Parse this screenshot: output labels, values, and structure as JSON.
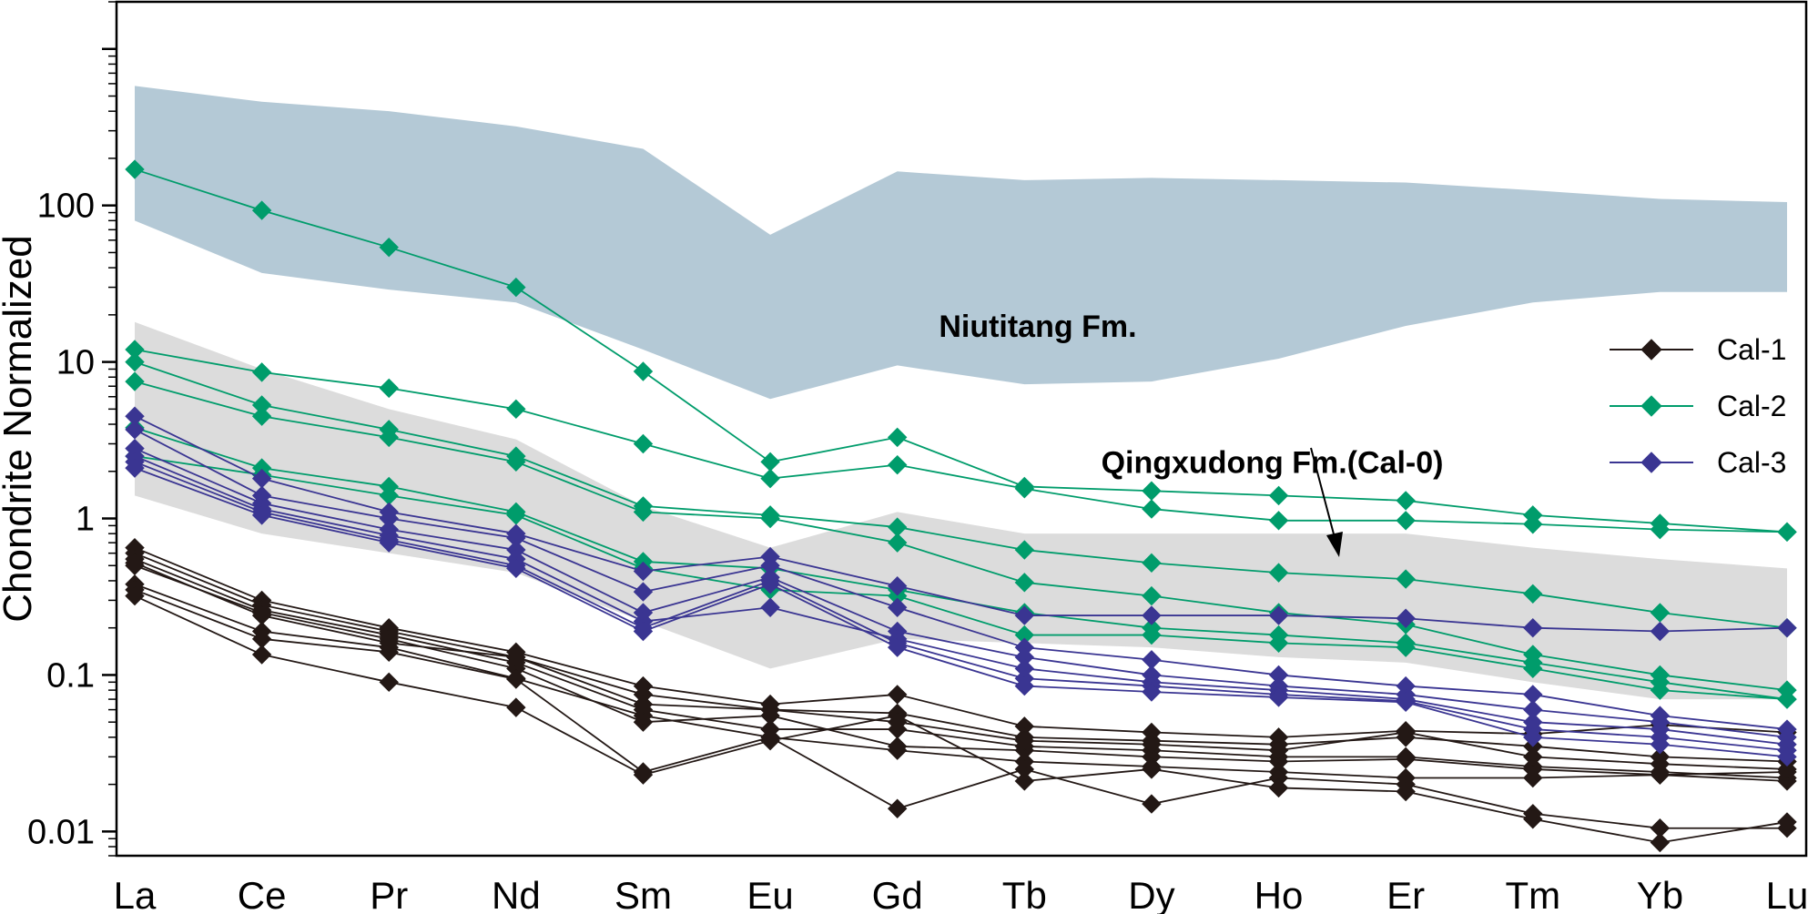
{
  "chart_data": {
    "type": "line",
    "scale": "log",
    "ylabel": "Chondrite Normalized",
    "ylim": [
      0.007,
      2000
    ],
    "y_ticks": [
      {
        "value": 0.01,
        "label": "0.01"
      },
      {
        "value": 0.1,
        "label": "0.1"
      },
      {
        "value": 1,
        "label": "1"
      },
      {
        "value": 10,
        "label": "10"
      },
      {
        "value": 100,
        "label": "100"
      }
    ],
    "categories": [
      "La",
      "Ce",
      "Pr",
      "Nd",
      "Sm",
      "Eu",
      "Gd",
      "Tb",
      "Dy",
      "Ho",
      "Er",
      "Tm",
      "Yb",
      "Lu"
    ],
    "annotations": [
      {
        "text": "Niutitang Fm.",
        "x": "Dy",
        "y": 17
      },
      {
        "text": "Qingxudong Fm.(Cal-0)",
        "x": "Ho",
        "y": 2.3
      }
    ],
    "bands": [
      {
        "name": "Niutitang Fm.",
        "color": "#b4c9d6",
        "upper": [
          580,
          460,
          400,
          320,
          230,
          65,
          165,
          145,
          150,
          145,
          140,
          125,
          110,
          105
        ],
        "lower": [
          80,
          37,
          29,
          24,
          12,
          5.8,
          9.5,
          7.2,
          7.5,
          10.5,
          17,
          24,
          28,
          28
        ]
      },
      {
        "name": "Qingxudong Fm.(Cal-0)",
        "color": "#dcdcdc",
        "upper": [
          18,
          9,
          5,
          3.2,
          1.2,
          0.65,
          1.1,
          0.8,
          0.8,
          0.8,
          0.8,
          0.65,
          0.55,
          0.48
        ],
        "lower": [
          1.4,
          0.8,
          0.6,
          0.45,
          0.22,
          0.11,
          0.17,
          0.16,
          0.15,
          0.13,
          0.12,
          0.09,
          0.07,
          0.07
        ]
      }
    ],
    "legend": {
      "position": "right",
      "entries": [
        {
          "label": "Cal-1",
          "color": "#231815"
        },
        {
          "label": "Cal-2",
          "color": "#009c6b"
        },
        {
          "label": "Cal-3",
          "color": "#3a3592"
        }
      ]
    },
    "series": [
      {
        "name": "Cal-1",
        "color": "#231815",
        "values": [
          0.65,
          0.3,
          0.2,
          0.14,
          0.085,
          0.065,
          0.075,
          0.047,
          0.043,
          0.04,
          0.044,
          0.042,
          0.048,
          0.043
        ]
      },
      {
        "name": "Cal-1",
        "color": "#231815",
        "values": [
          0.6,
          0.28,
          0.19,
          0.13,
          0.075,
          0.06,
          0.057,
          0.04,
          0.038,
          0.036,
          0.04,
          0.035,
          0.03,
          0.028
        ]
      },
      {
        "name": "Cal-1",
        "color": "#231815",
        "values": [
          0.55,
          0.26,
          0.18,
          0.12,
          0.06,
          0.045,
          0.045,
          0.035,
          0.033,
          0.03,
          0.03,
          0.026,
          0.024,
          0.022
        ]
      },
      {
        "name": "Cal-1",
        "color": "#231815",
        "values": [
          0.5,
          0.25,
          0.17,
          0.11,
          0.05,
          0.055,
          0.035,
          0.033,
          0.03,
          0.028,
          0.029,
          0.025,
          0.023,
          0.021
        ]
      },
      {
        "name": "Cal-1",
        "color": "#231815",
        "values": [
          0.38,
          0.19,
          0.15,
          0.095,
          0.055,
          0.04,
          0.033,
          0.028,
          0.026,
          0.024,
          0.022,
          0.022,
          0.023,
          0.024
        ]
      },
      {
        "name": "Cal-1",
        "color": "#231815",
        "values": [
          0.35,
          0.17,
          0.14,
          0.094,
          0.024,
          0.04,
          0.014,
          0.025,
          0.015,
          0.022,
          0.02,
          0.013,
          0.0105,
          0.0105
        ]
      },
      {
        "name": "Cal-1",
        "color": "#231815",
        "values": [
          0.32,
          0.135,
          0.09,
          0.062,
          0.023,
          0.038,
          0.055,
          0.021,
          0.025,
          0.019,
          0.018,
          0.012,
          0.0085,
          0.0115
        ]
      },
      {
        "name": "Cal-1",
        "color": "#231815",
        "values": [
          0.52,
          0.24,
          0.16,
          0.13,
          0.065,
          0.06,
          0.05,
          0.038,
          0.036,
          0.033,
          0.043,
          0.03,
          0.027,
          0.025
        ]
      },
      {
        "name": "Cal-2",
        "color": "#009c6b",
        "values": [
          170,
          93,
          54,
          30,
          8.7,
          2.3,
          3.3,
          1.6,
          1.5,
          1.4,
          1.3,
          1.05,
          0.93,
          0.82
        ]
      },
      {
        "name": "Cal-2",
        "color": "#009c6b",
        "values": [
          12,
          8.6,
          6.8,
          5.0,
          3.0,
          1.8,
          2.2,
          1.55,
          1.15,
          0.97,
          0.97,
          0.92,
          0.85,
          0.82
        ]
      },
      {
        "name": "Cal-2",
        "color": "#009c6b",
        "values": [
          10,
          5.3,
          3.7,
          2.5,
          1.2,
          1.05,
          0.88,
          0.63,
          0.52,
          0.45,
          0.41,
          0.33,
          0.25,
          0.2
        ]
      },
      {
        "name": "Cal-2",
        "color": "#009c6b",
        "values": [
          7.5,
          4.5,
          3.3,
          2.3,
          1.1,
          1.0,
          0.7,
          0.39,
          0.32,
          0.25,
          0.21,
          0.135,
          0.1,
          0.08
        ]
      },
      {
        "name": "Cal-2",
        "color": "#009c6b",
        "values": [
          3.8,
          2.1,
          1.6,
          1.1,
          0.53,
          0.48,
          0.35,
          0.25,
          0.2,
          0.18,
          0.16,
          0.12,
          0.09,
          0.07
        ]
      },
      {
        "name": "Cal-2",
        "color": "#009c6b",
        "values": [
          2.5,
          1.9,
          1.4,
          1.05,
          0.48,
          0.35,
          0.32,
          0.18,
          0.18,
          0.16,
          0.15,
          0.11,
          0.08,
          0.07
        ]
      },
      {
        "name": "Cal-3",
        "color": "#3a3592",
        "values": [
          4.5,
          1.8,
          1.1,
          0.8,
          0.46,
          0.57,
          0.37,
          0.24,
          0.24,
          0.24,
          0.23,
          0.2,
          0.19,
          0.2
        ]
      },
      {
        "name": "Cal-3",
        "color": "#3a3592",
        "values": [
          3.7,
          1.4,
          1.0,
          0.75,
          0.34,
          0.5,
          0.27,
          0.15,
          0.125,
          0.1,
          0.085,
          0.075,
          0.055,
          0.045
        ]
      },
      {
        "name": "Cal-3",
        "color": "#3a3592",
        "values": [
          2.8,
          1.25,
          0.85,
          0.63,
          0.25,
          0.42,
          0.19,
          0.13,
          0.1,
          0.085,
          0.075,
          0.06,
          0.05,
          0.04
        ]
      },
      {
        "name": "Cal-3",
        "color": "#3a3592",
        "values": [
          2.5,
          1.15,
          0.78,
          0.55,
          0.22,
          0.27,
          0.17,
          0.11,
          0.09,
          0.08,
          0.07,
          0.05,
          0.045,
          0.036
        ]
      },
      {
        "name": "Cal-3",
        "color": "#3a3592",
        "values": [
          2.3,
          1.1,
          0.73,
          0.5,
          0.2,
          0.4,
          0.16,
          0.095,
          0.085,
          0.075,
          0.068,
          0.045,
          0.04,
          0.033
        ]
      },
      {
        "name": "Cal-3",
        "color": "#3a3592",
        "values": [
          2.1,
          1.05,
          0.7,
          0.48,
          0.19,
          0.38,
          0.15,
          0.085,
          0.078,
          0.072,
          0.067,
          0.04,
          0.036,
          0.03
        ]
      }
    ]
  }
}
